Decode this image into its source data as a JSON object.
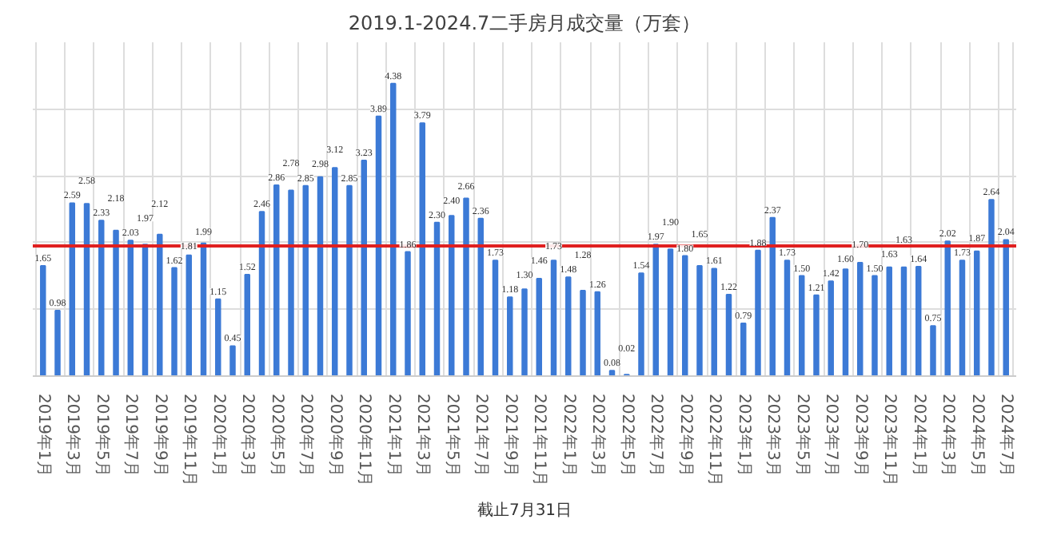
{
  "chart_data": {
    "type": "bar",
    "title": "2019.1-2024.7二手房月成交量（万套）",
    "categories": [
      "2019年1月",
      null,
      "2019年3月",
      null,
      "2019年5月",
      null,
      "2019年7月",
      null,
      "2019年9月",
      null,
      "2019年11月",
      null,
      "2020年1月",
      null,
      "2020年3月",
      null,
      "2020年5月",
      null,
      "2020年7月",
      null,
      "2020年9月",
      null,
      "2020年11月",
      null,
      "2021年1月",
      null,
      "2021年3月",
      null,
      "2021年5月",
      null,
      "2021年7月",
      null,
      "2021年9月",
      null,
      "2021年11月",
      null,
      "2022年1月",
      null,
      "2022年3月",
      null,
      "2022年5月",
      null,
      "2022年7月",
      null,
      "2022年9月",
      null,
      "2022年11月",
      null,
      "2023年1月",
      null,
      "2023年3月",
      null,
      "2023年5月",
      null,
      "2023年7月",
      null,
      "2023年9月",
      null,
      "2023年11月",
      null,
      "2024年1月",
      null,
      "2024年3月",
      null,
      "2024年5月",
      null,
      "2024年7月"
    ],
    "values": [
      1.65,
      0.98,
      2.59,
      2.58,
      2.33,
      2.18,
      2.03,
      1.97,
      2.12,
      1.62,
      1.81,
      1.99,
      1.15,
      0.45,
      1.52,
      2.46,
      2.86,
      2.78,
      2.85,
      2.98,
      3.12,
      2.85,
      3.23,
      3.89,
      4.38,
      1.86,
      3.79,
      2.3,
      2.4,
      2.66,
      2.36,
      1.73,
      1.18,
      1.3,
      1.46,
      1.73,
      1.48,
      1.28,
      1.26,
      0.08,
      0.02,
      1.54,
      1.97,
      1.9,
      1.8,
      1.65,
      1.61,
      1.22,
      0.79,
      1.88,
      2.37,
      1.73,
      1.5,
      1.21,
      1.42,
      1.6,
      1.7,
      1.5,
      1.63,
      1.63,
      1.64,
      0.75,
      2.02,
      1.73,
      1.87,
      2.64,
      2.04
    ],
    "value_labels": [
      "1.65",
      "0.98",
      "2.59",
      "2.58",
      "2.33",
      "2.18",
      "2.03",
      "1.97",
      "2.12",
      "1.62",
      "1.81",
      "1.99",
      "1.15",
      "0.45",
      "1.52",
      "2.46",
      "2.86",
      "2.78",
      "2.85",
      "2.98",
      "3.12",
      "2.85",
      "3.23",
      "3.89",
      "4.38",
      "1.86",
      "3.79",
      "2.30",
      "2.40",
      "2.66",
      "2.36",
      "1.73",
      "1.18",
      "1.30",
      "1.46",
      "1.73",
      "1.48",
      "1.28",
      "1.26",
      "0.08",
      "0.02",
      "1.54",
      "1.97",
      "1.90",
      "1.80",
      "1.65",
      "1.61",
      "1.22",
      "0.79",
      "1.88",
      "2.37",
      "1.73",
      "1.50",
      "1.21",
      "1.42",
      "1.60",
      "1.70",
      "1.50",
      "1.63",
      "1.63",
      "1.64",
      "0.75",
      "2.02",
      "1.73",
      "1.87",
      "2.64",
      "2.04"
    ],
    "color": "#3c7ad6",
    "ylim": [
      0,
      5
    ],
    "tick_labels": "x",
    "grid": true,
    "ref_lines": [
      {
        "axis": "y",
        "value": 1.95,
        "color": "#e02020"
      }
    ],
    "annotations": [
      "截止7月31日"
    ]
  }
}
